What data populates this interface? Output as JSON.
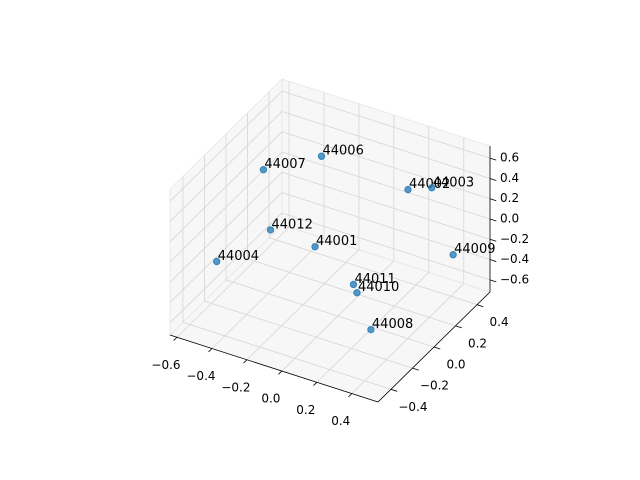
{
  "chart_data": {
    "type": "scatter3d",
    "labels": [
      "44006",
      "44007",
      "44002",
      "44003",
      "44012",
      "44001",
      "44004",
      "44009",
      "44011",
      "44010",
      "44008"
    ],
    "x": [
      -0.26,
      -0.58,
      0.13,
      0.26,
      -0.41,
      -0.18,
      -0.57,
      0.45,
      0.12,
      0.14,
      0.3
    ],
    "y": [
      0.27,
      0.25,
      0.44,
      0.45,
      0.04,
      0.08,
      -0.2,
      0.34,
      -0.05,
      -0.05,
      -0.18
    ],
    "z": [
      0.43,
      0.14,
      0.14,
      0.22,
      -0.14,
      -0.22,
      -0.29,
      -0.22,
      -0.29,
      -0.36,
      -0.5
    ],
    "color": "#1f77b4",
    "xlim": [
      -0.64,
      0.55
    ],
    "ylim": [
      -0.52,
      0.52
    ],
    "zlim": [
      -0.72,
      0.72
    ],
    "xticks": [
      {
        "value": -0.6,
        "label": "−0.6"
      },
      {
        "value": -0.4,
        "label": "−0.4"
      },
      {
        "value": -0.2,
        "label": "−0.2"
      },
      {
        "value": 0,
        "label": "0.0"
      },
      0.2,
      0.4
    ],
    "yticks": [
      {
        "value": -0.4,
        "label": "−0.4"
      },
      {
        "value": -0.2,
        "label": "−0.2"
      },
      {
        "value": 0,
        "label": "0.0"
      },
      0.2,
      0.4
    ],
    "zticks": [
      {
        "value": -0.6,
        "label": "−0.6"
      },
      {
        "value": -0.4,
        "label": "−0.4"
      },
      {
        "value": -0.2,
        "label": "−0.2"
      },
      {
        "value": 0,
        "label": "0.0"
      },
      0.2,
      0.4,
      0.6
    ],
    "grid": true
  }
}
